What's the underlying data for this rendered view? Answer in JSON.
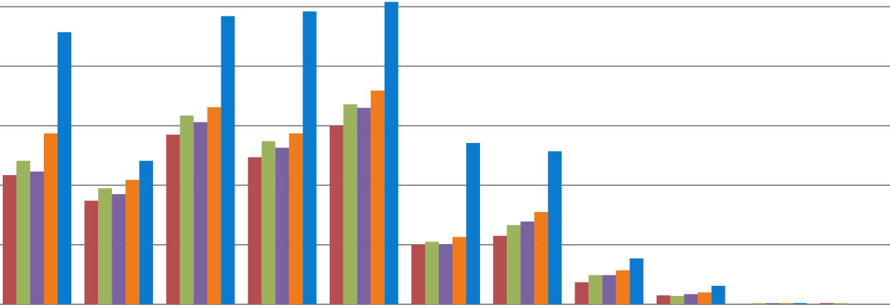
{
  "chart_data": {
    "type": "bar",
    "categories": [
      null,
      null,
      null,
      null,
      null,
      null,
      null,
      null,
      null,
      null,
      null
    ],
    "series": [
      {
        "color": "#b54f4f",
        "values": [
          2.17,
          1.74,
          2.85,
          2.47,
          3.0,
          1.0,
          1.15,
          0.37,
          0.15,
          0,
          0.02
        ]
      },
      {
        "color": "#9bb35c",
        "values": [
          2.41,
          1.95,
          3.17,
          2.74,
          3.36,
          1.05,
          1.33,
          0.49,
          0.14,
          0.02,
          0.02
        ]
      },
      {
        "color": "#7b62a0",
        "values": [
          2.23,
          1.85,
          3.06,
          2.63,
          3.3,
          1.01,
          1.39,
          0.49,
          0.17,
          0.02,
          0
        ]
      },
      {
        "color": "#f07b1a",
        "values": [
          2.87,
          2.09,
          3.31,
          2.87,
          3.59,
          1.13,
          1.55,
          0.57,
          0.2,
          0.02,
          0
        ]
      },
      {
        "color": "#0b7bd0",
        "values": [
          4.57,
          2.41,
          4.84,
          4.92,
          5.08,
          2.71,
          2.57,
          0.77,
          0.31,
          0.02,
          0
        ]
      }
    ],
    "ylim": [
      0,
      5.1
    ],
    "yticks": [
      0,
      1,
      2,
      3,
      4,
      5
    ],
    "grid": true,
    "grid_color": "#888888"
  }
}
